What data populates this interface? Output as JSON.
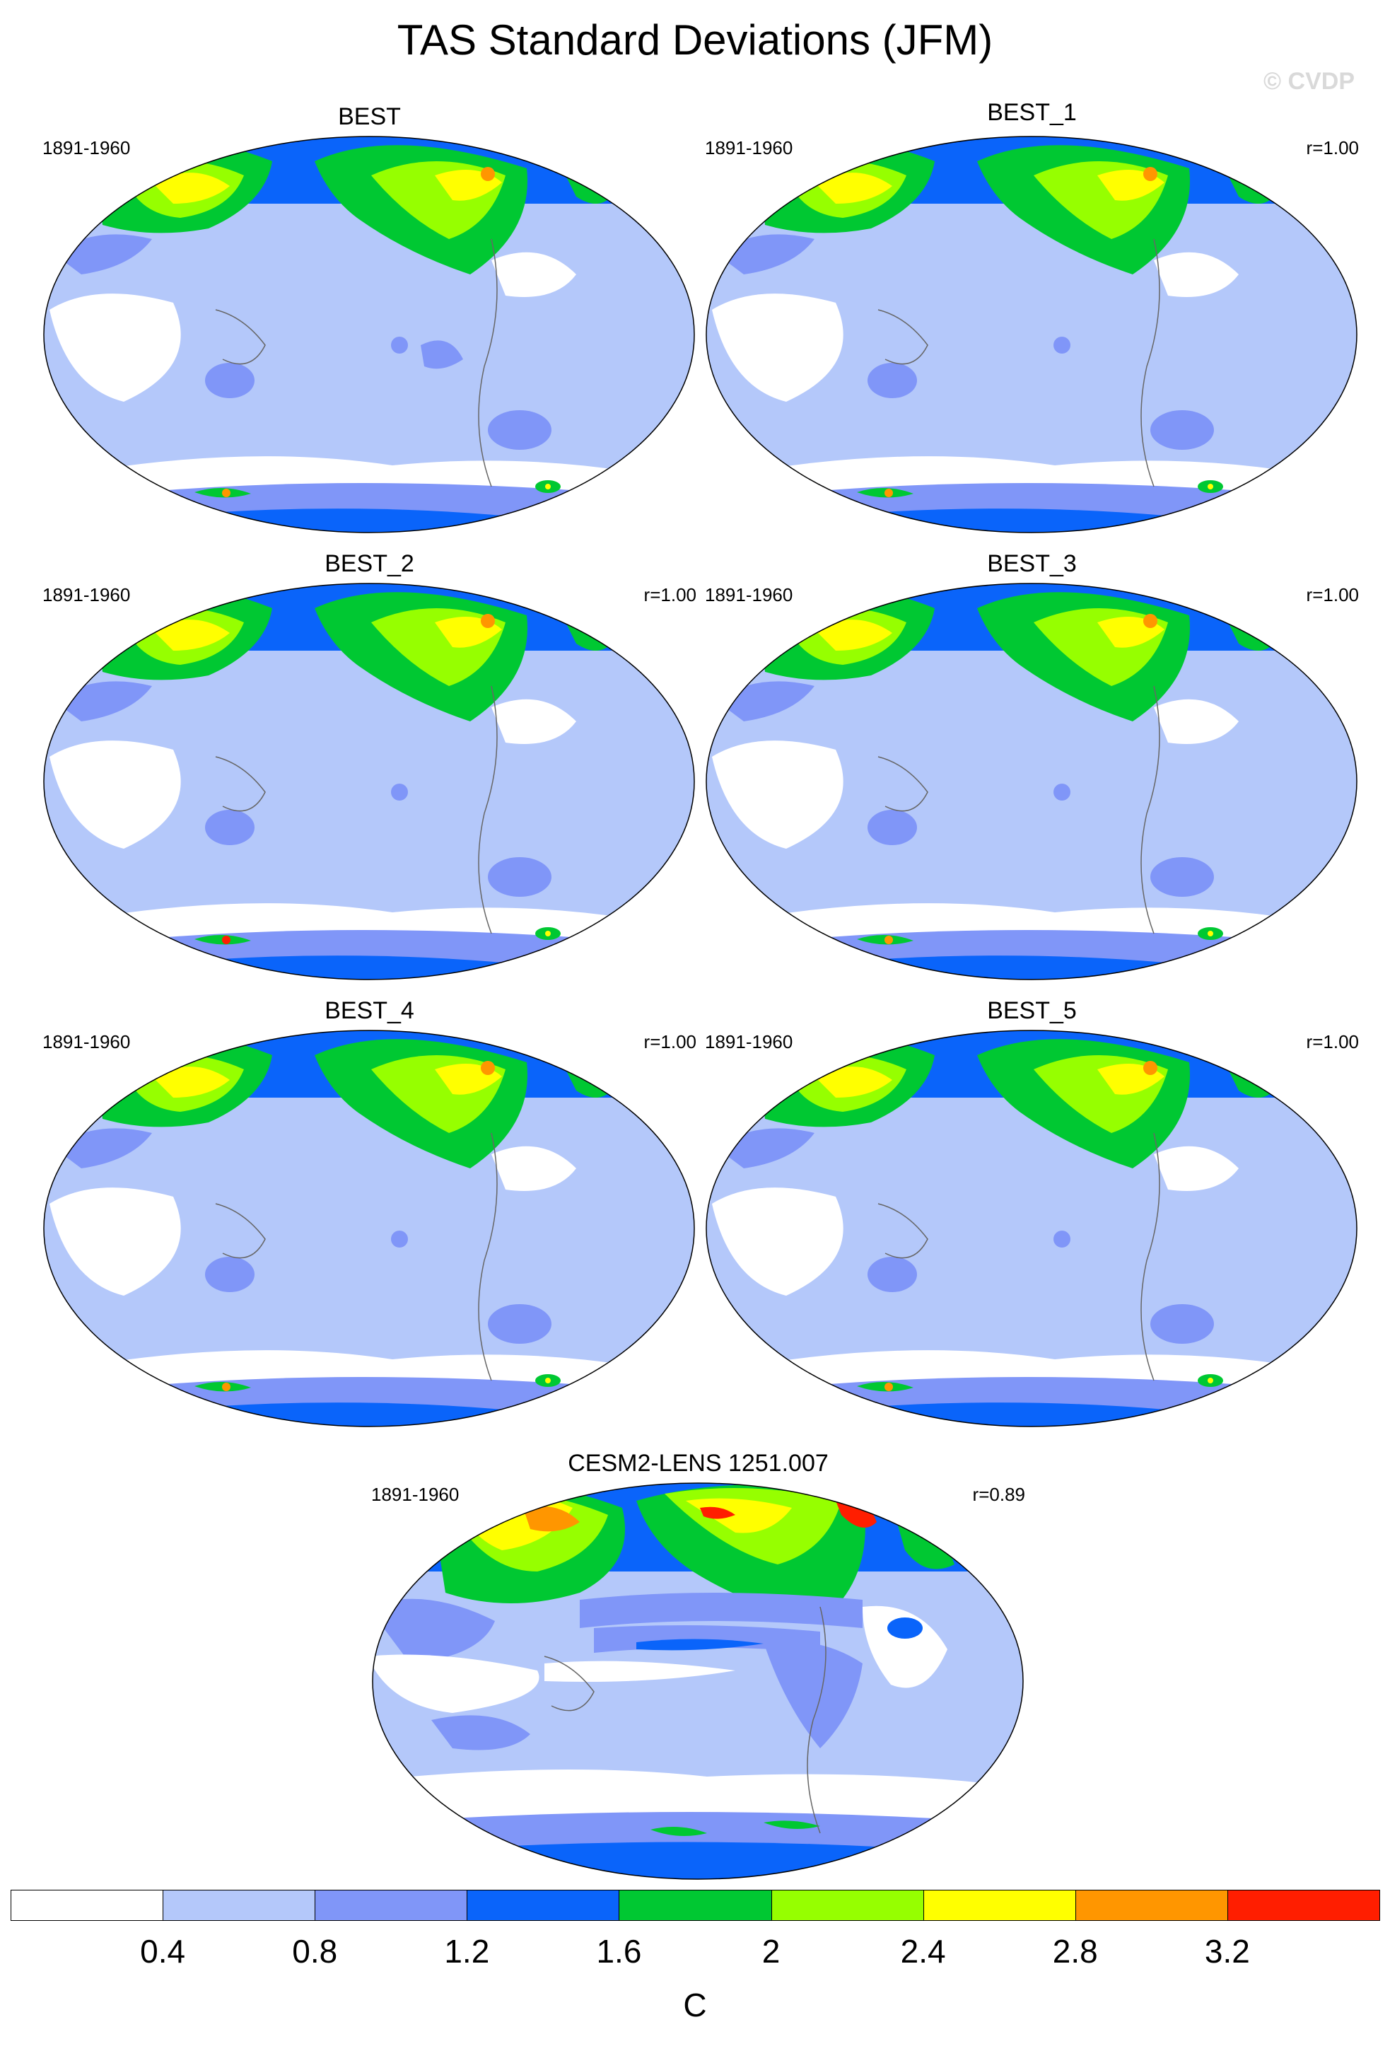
{
  "title": "TAS Standard Deviations (JFM)",
  "watermark": "© CVDP",
  "panels": [
    {
      "title": "BEST",
      "period": "1891-1960",
      "corr": ""
    },
    {
      "title": "BEST_1",
      "period": "1891-1960",
      "corr": "r=1.00"
    },
    {
      "title": "BEST_2",
      "period": "1891-1960",
      "corr": "r=1.00"
    },
    {
      "title": "BEST_3",
      "period": "1891-1960",
      "corr": "r=1.00"
    },
    {
      "title": "BEST_4",
      "period": "1891-1960",
      "corr": "r=1.00"
    },
    {
      "title": "BEST_5",
      "period": "1891-1960",
      "corr": "r=1.00"
    },
    {
      "title": "CESM2-LENS 1251.007",
      "period": "1891-1960",
      "corr": "r=0.89"
    }
  ],
  "colorbar": {
    "unit": "C",
    "labels": [
      "0.4",
      "0.8",
      "1.2",
      "1.6",
      "2",
      "2.4",
      "2.8",
      "3.2"
    ],
    "colors": [
      "#ffffff",
      "#b4c8fa",
      "#8096f8",
      "#0a64fa",
      "#00c832",
      "#96ff00",
      "#ffff00",
      "#ff9600",
      "#ff1e00"
    ]
  }
}
